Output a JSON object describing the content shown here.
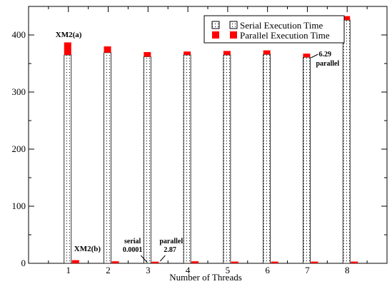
{
  "chart_data": {
    "type": "bar",
    "xlabel": "Number of Threads",
    "ylabel": "",
    "x": [
      1,
      2,
      3,
      4,
      5,
      6,
      7,
      8
    ],
    "ylim": [
      0,
      450
    ],
    "yticks": [
      0,
      100,
      200,
      300,
      400
    ],
    "grid": false,
    "legend_position": "top-right",
    "series": [
      {
        "name": "Serial Execution Time",
        "group": "XM2(a)",
        "pattern": "dotted",
        "color": "#000000",
        "values": [
          365,
          369,
          362,
          365,
          365,
          366,
          361,
          426
        ]
      },
      {
        "name": "Parallel Execution Time",
        "group": "XM2(a)",
        "stacked_on": "Serial Execution Time",
        "color": "#ff0000",
        "values": [
          22,
          11,
          8,
          6,
          7,
          7,
          6.29,
          7
        ]
      },
      {
        "name": "Serial Execution Time",
        "group": "XM2(b)",
        "pattern": "dotted",
        "color": "#000000",
        "values": [
          0.0001,
          0.0001,
          0.0001,
          0.0001,
          0.0001,
          0.0001,
          0.0001,
          0.0001
        ]
      },
      {
        "name": "Parallel Execution Time",
        "group": "XM2(b)",
        "stacked_on": "Serial Execution Time",
        "color": "#ff0000",
        "values": [
          5.5,
          3.5,
          2.87,
          3.5,
          3,
          3,
          3,
          3
        ]
      }
    ],
    "annotations": {
      "xm2a": "XM2(a)",
      "xm2b": "XM2(b)",
      "serial_word": "serial",
      "serial_value": "0.0001",
      "parallel_word_b": "parallel",
      "parallel_value_b": "2.87",
      "parallel_value_a": "6.29",
      "parallel_word_a": "parallel"
    }
  }
}
